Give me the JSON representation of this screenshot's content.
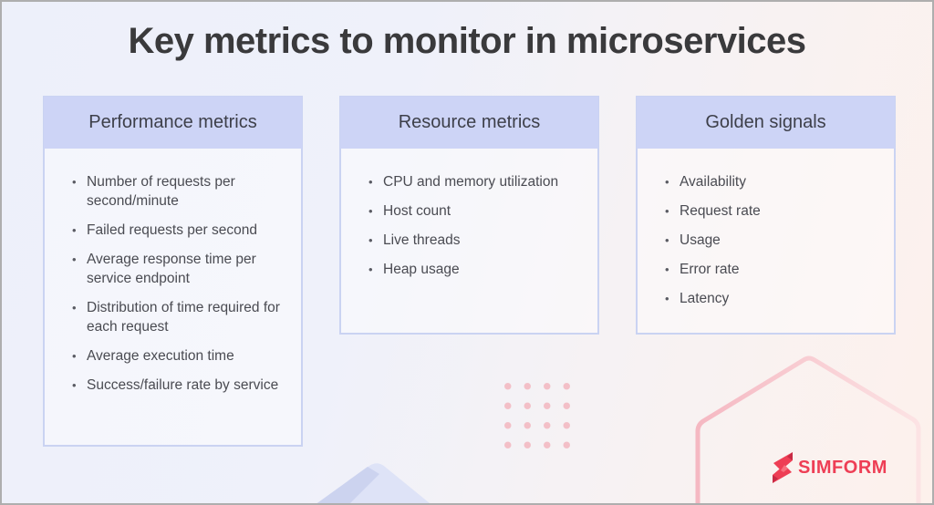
{
  "title": "Key metrics to monitor in microservices",
  "cards": [
    {
      "header": "Performance metrics",
      "items": [
        "Number of requests per second/minute",
        "Failed requests per second",
        "Average response time per service endpoint",
        "Distribution of time required for each request",
        "Average execution time",
        "Success/failure rate by service"
      ]
    },
    {
      "header": "Resource metrics",
      "items": [
        "CPU and memory utilization",
        "Host count",
        "Live threads",
        "Heap usage"
      ]
    },
    {
      "header": "Golden signals",
      "items": [
        "Availability",
        "Request rate",
        "Usage",
        "Error rate",
        "Latency"
      ]
    }
  ],
  "branding": {
    "logo_text": "SIMFORM",
    "brand_color": "#ee3e55"
  },
  "colors": {
    "card_header_bg": "#cdd4f6",
    "card_border": "#cad3f2",
    "title_color": "#3a3a3c",
    "body_text_color": "#4a4b52",
    "dot_color": "#f3bfc7",
    "hexagon_stroke": "#f5bac3",
    "background_left": "#edf0fa",
    "background_right": "#fdf1ec"
  }
}
